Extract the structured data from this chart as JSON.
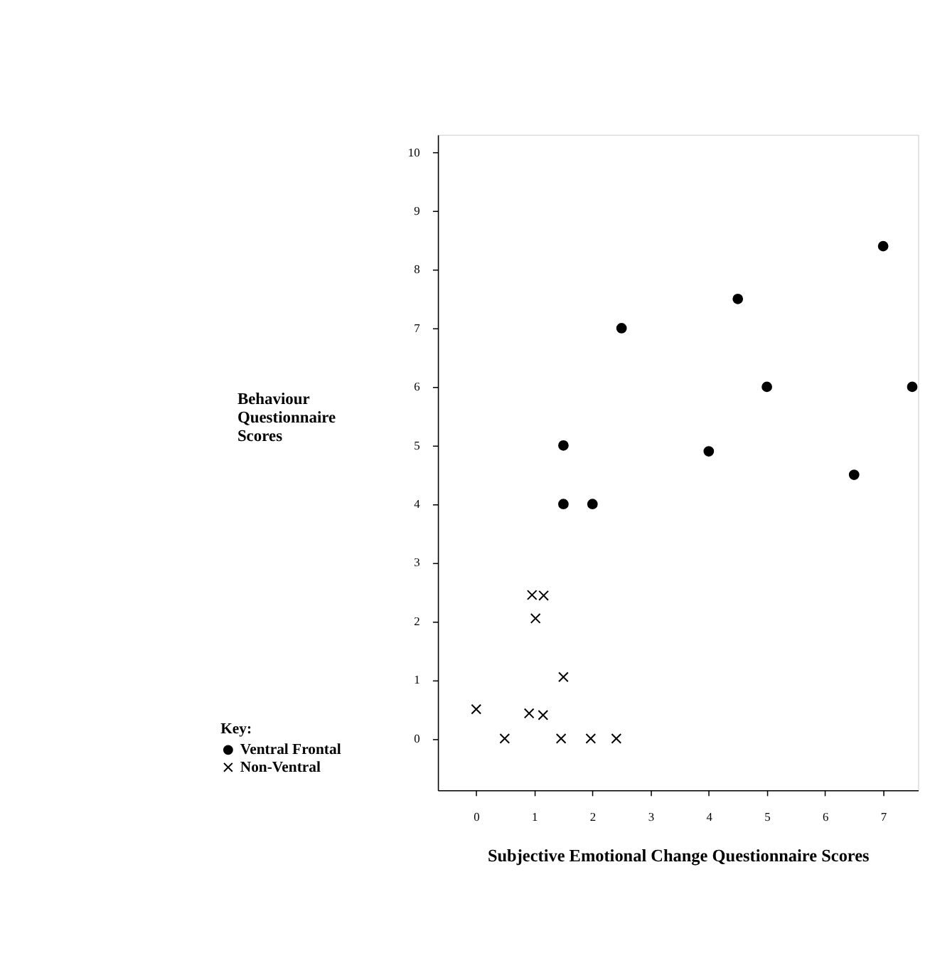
{
  "chart_data": {
    "type": "scatter",
    "xlabel": "Subjective Emotional Change Questionnaire Scores",
    "ylabel": "Behaviour\nQuestionnaire\nScores",
    "legend_title": "Key:",
    "legend": "bottom left",
    "xlim": [
      -0.66,
      7.6
    ],
    "xticks": [
      0,
      1,
      2,
      3,
      4,
      5,
      6,
      7
    ],
    "ylim": [
      -0.88,
      10.3
    ],
    "yticks": [
      0,
      1,
      2,
      3,
      4,
      5,
      6,
      7,
      8,
      9,
      10
    ],
    "grid": false,
    "series": [
      {
        "name": "Ventral Frontal",
        "color": "#000000",
        "marker": "circle",
        "x": [
          1.5,
          1.5,
          2.0,
          2.5,
          4.0,
          4.5,
          5.0,
          6.5,
          7.0,
          7.5
        ],
        "values": [
          5.0,
          4.0,
          4.0,
          7.0,
          4.9,
          7.5,
          6.0,
          4.5,
          8.4,
          6.0
        ]
      },
      {
        "name": "Non-Ventral",
        "color": "#000000",
        "marker": "cross",
        "x": [
          0.96,
          1.16,
          1.02,
          1.5,
          0.0,
          0.91,
          1.15,
          0.49,
          1.46,
          1.97,
          2.41
        ],
        "values": [
          2.45,
          2.44,
          2.05,
          1.05,
          0.5,
          0.43,
          0.4,
          0.0,
          0.0,
          0.0,
          0.0
        ]
      }
    ]
  }
}
